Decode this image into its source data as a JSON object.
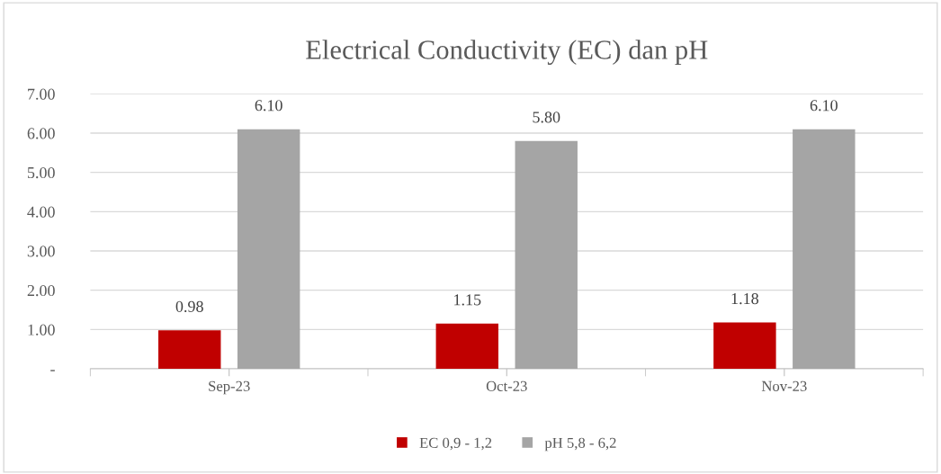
{
  "chart_data": {
    "type": "bar",
    "title": "Electrical Conductivity (EC) dan pH",
    "categories": [
      "Sep-23",
      "Oct-23",
      "Nov-23"
    ],
    "series": [
      {
        "name": "EC 0,9 - 1,2",
        "color": "#c00000",
        "values": [
          0.98,
          1.15,
          1.18
        ],
        "value_labels": [
          "0.98",
          "1.15",
          "1.18"
        ]
      },
      {
        "name": "pH 5,8 - 6,2",
        "color": "#a5a5a5",
        "values": [
          6.1,
          5.8,
          6.1
        ],
        "value_labels": [
          "6.10",
          "5.80",
          "6.10"
        ]
      }
    ],
    "ylim": [
      0,
      7
    ],
    "yticks": [
      {
        "value": 0,
        "label": "-"
      },
      {
        "value": 1,
        "label": "1.00"
      },
      {
        "value": 2,
        "label": "2.00"
      },
      {
        "value": 3,
        "label": "3.00"
      },
      {
        "value": 4,
        "label": "4.00"
      },
      {
        "value": 5,
        "label": "5.00"
      },
      {
        "value": 6,
        "label": "6.00"
      },
      {
        "value": 7,
        "label": "7.00"
      }
    ],
    "grid": "y",
    "legend": "bottom"
  }
}
